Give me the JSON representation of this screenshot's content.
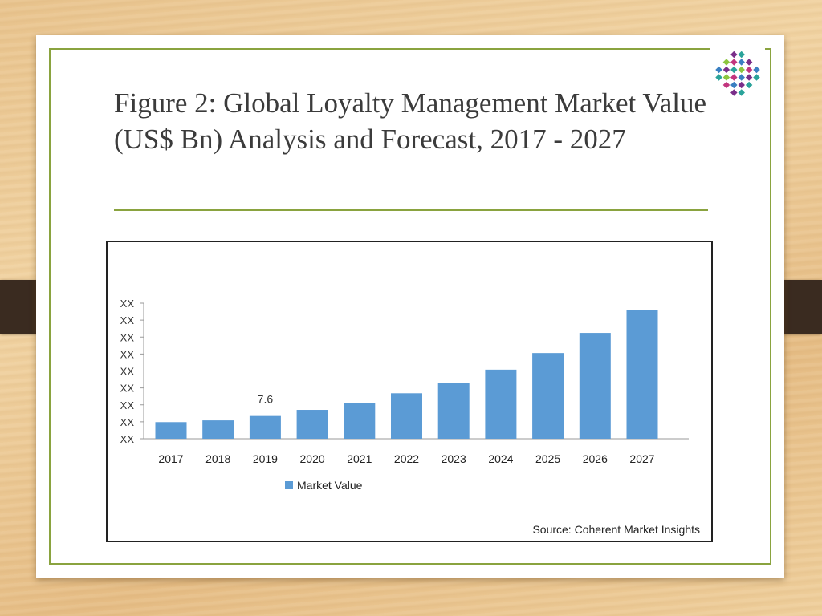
{
  "slide": {
    "title": "Figure 2: Global Loyalty Management Market Value (US$ Bn) Analysis and Forecast, 2017 - 2027"
  },
  "colors": {
    "accent": "#8aa33f",
    "bar": "#5b9bd5",
    "strap": "#3a2b20"
  },
  "logo": {
    "icon": "dotted-globe-icon"
  },
  "chart_data": {
    "type": "bar",
    "categories": [
      "2017",
      "2018",
      "2019",
      "2020",
      "2021",
      "2022",
      "2023",
      "2024",
      "2025",
      "2026",
      "2027"
    ],
    "series": [
      {
        "name": "Market Value",
        "values": [
          6.9,
          7.1,
          7.6,
          8.3,
          9.1,
          10.2,
          11.4,
          12.9,
          14.8,
          17.1,
          19.7
        ],
        "color": "#5b9bd5"
      }
    ],
    "y_tick_labels": [
      "XX",
      "XX",
      "XX",
      "XX",
      "XX",
      "XX",
      "XX",
      "XX",
      "XX"
    ],
    "data_labels": [
      {
        "category": "2019",
        "text": "7.6"
      }
    ],
    "legend": {
      "label": "Market Value",
      "position": "bottom-left"
    },
    "source": "Source: Coherent Market Insights",
    "grid": false
  }
}
